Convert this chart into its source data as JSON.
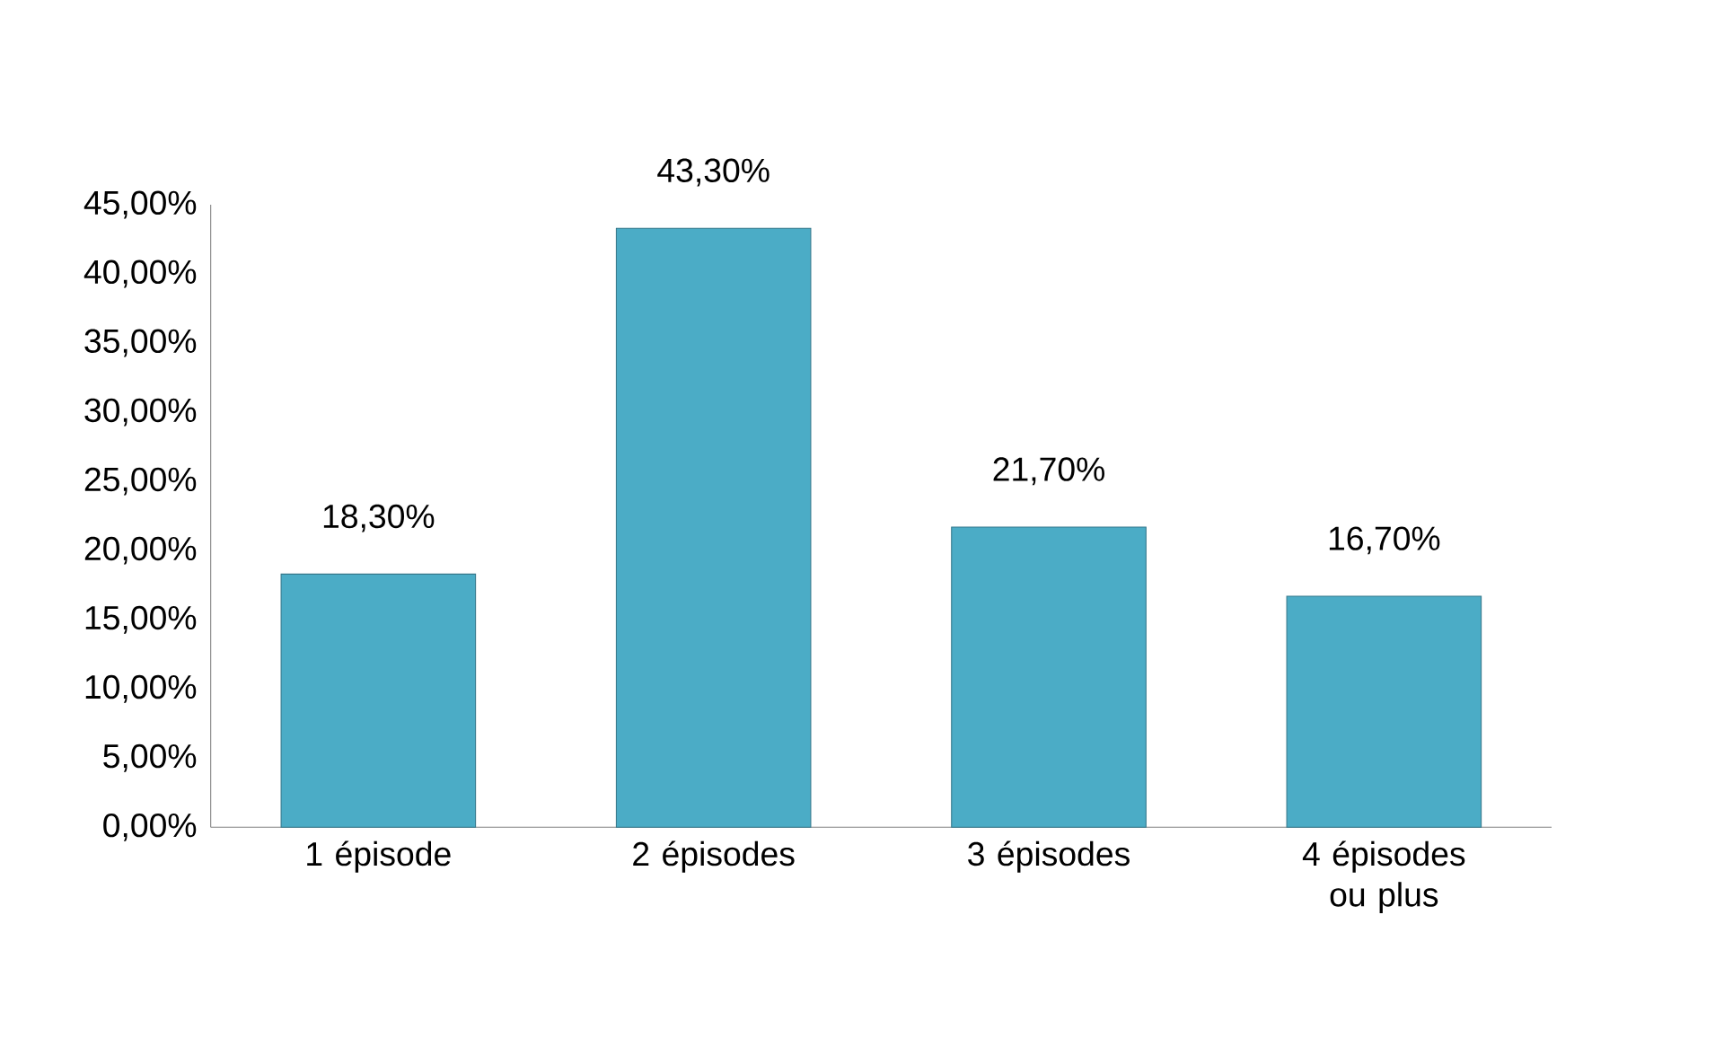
{
  "chart_data": {
    "type": "bar",
    "categories": [
      "1 épisode",
      "2 épisodes",
      "3 épisodes",
      "4 épisodes ou plus"
    ],
    "values": [
      18.3,
      43.3,
      21.7,
      16.7
    ],
    "value_labels": [
      "18,30%",
      "43,30%",
      "21,70%",
      "16,70%"
    ],
    "color": "#4bacc6",
    "ylim": [
      0,
      45
    ],
    "yticks": [
      {
        "value": 0,
        "label": "0,00%"
      },
      {
        "value": 5,
        "label": "5,00%"
      },
      {
        "value": 10,
        "label": "10,00%"
      },
      {
        "value": 15,
        "label": "15,00%"
      },
      {
        "value": 20,
        "label": "20,00%"
      },
      {
        "value": 25,
        "label": "25,00%"
      },
      {
        "value": 30,
        "label": "30,00%"
      },
      {
        "value": 35,
        "label": "35,00%"
      },
      {
        "value": 40,
        "label": "40,00%"
      },
      {
        "value": 45,
        "label": "45,00%"
      }
    ]
  }
}
